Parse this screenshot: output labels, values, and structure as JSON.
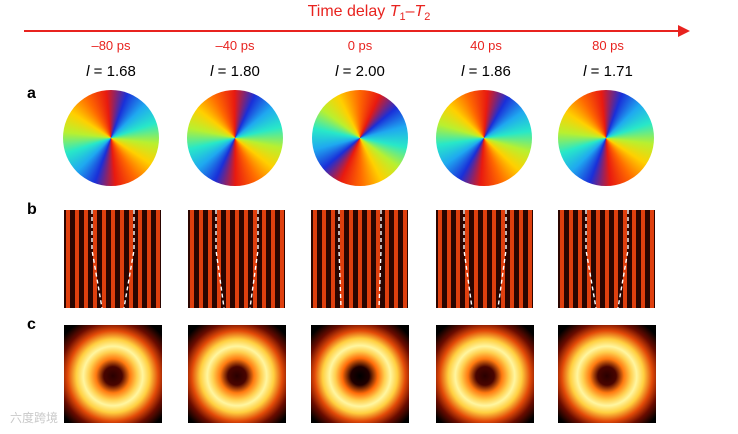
{
  "axis": {
    "title_prefix": "Time delay ",
    "t1_var": "T",
    "t1_sub": "1",
    "dash": "–",
    "t2_var": "T",
    "t2_sub": "2",
    "color": "#e8231f"
  },
  "row_labels": {
    "a": "a",
    "b": "b",
    "c": "c"
  },
  "columns": [
    {
      "delay": "–80 ps",
      "l_var": "l",
      "l_value": " = 1.68"
    },
    {
      "delay": "–40 ps",
      "l_var": "l",
      "l_value": " = 1.80"
    },
    {
      "delay": "0 ps",
      "l_var": "l",
      "l_value": " = 2.00"
    },
    {
      "delay": "40 ps",
      "l_var": "l",
      "l_value": " = 1.86"
    },
    {
      "delay": "80 ps",
      "l_var": "l",
      "l_value": " = 1.71"
    }
  ],
  "watermark": "六度跨境",
  "colors": {
    "red": "#e8231f",
    "fringe_dark": "#2a0500",
    "fringe_bright": "#ff4a10",
    "ring_hot": "#fff6a0",
    "ring_mid": "#ff9a10"
  }
}
